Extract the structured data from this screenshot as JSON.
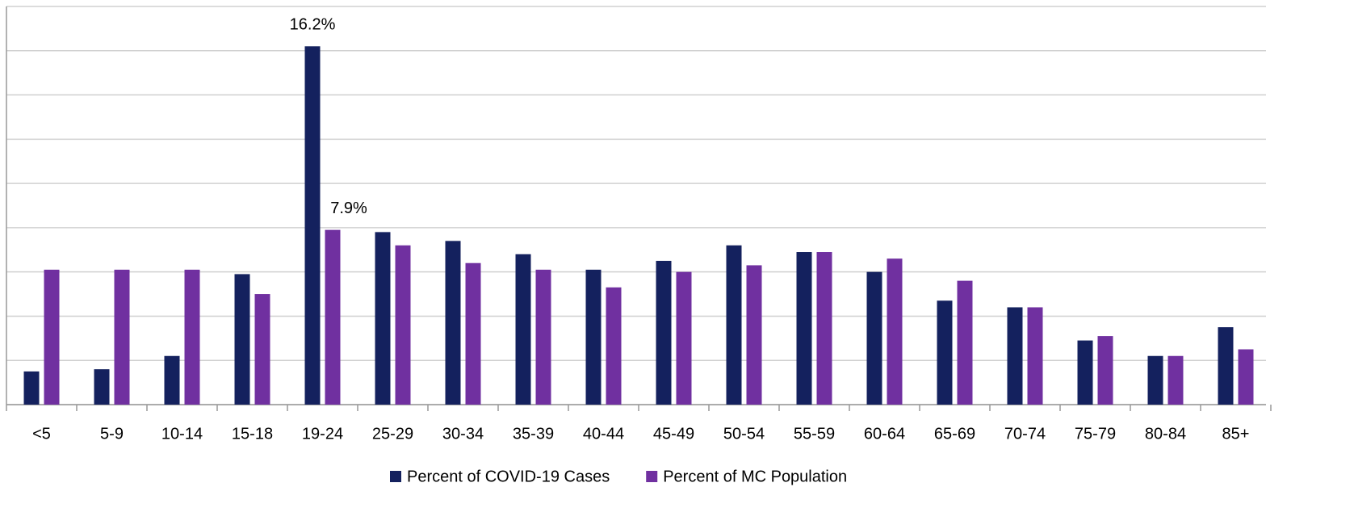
{
  "chart_data": {
    "type": "bar",
    "categories": [
      "<5",
      "5-9",
      "10-14",
      "15-18",
      "19-24",
      "25-29",
      "30-34",
      "35-39",
      "40-44",
      "45-49",
      "50-54",
      "55-59",
      "60-64",
      "65-69",
      "70-74",
      "75-79",
      "80-84",
      "85+"
    ],
    "series": [
      {
        "name": "Percent of COVID-19 Cases",
        "color": "#14215e",
        "values": [
          1.5,
          1.6,
          2.2,
          5.9,
          16.2,
          7.8,
          7.4,
          6.8,
          6.1,
          6.5,
          7.2,
          6.9,
          6.0,
          4.7,
          4.4,
          2.9,
          2.2,
          3.5
        ],
        "value_labels": [
          null,
          null,
          null,
          null,
          "16.2%",
          null,
          null,
          null,
          null,
          null,
          null,
          null,
          null,
          null,
          null,
          null,
          null,
          null
        ]
      },
      {
        "name": "Percent of MC Population",
        "color": "#7030a0",
        "values": [
          6.1,
          6.1,
          6.1,
          5.0,
          7.9,
          7.2,
          6.4,
          6.1,
          5.3,
          6.0,
          6.3,
          6.9,
          6.6,
          5.6,
          4.4,
          3.1,
          2.2,
          2.5
        ],
        "value_labels": [
          null,
          null,
          null,
          null,
          "7.9%",
          null,
          null,
          null,
          null,
          null,
          null,
          null,
          null,
          null,
          null,
          null,
          null,
          null
        ]
      }
    ],
    "ylim": [
      0,
      18
    ],
    "yticks": [
      0,
      2,
      4,
      6,
      8,
      10,
      12,
      14,
      16,
      18
    ],
    "grid": true,
    "legend": "bottom"
  }
}
